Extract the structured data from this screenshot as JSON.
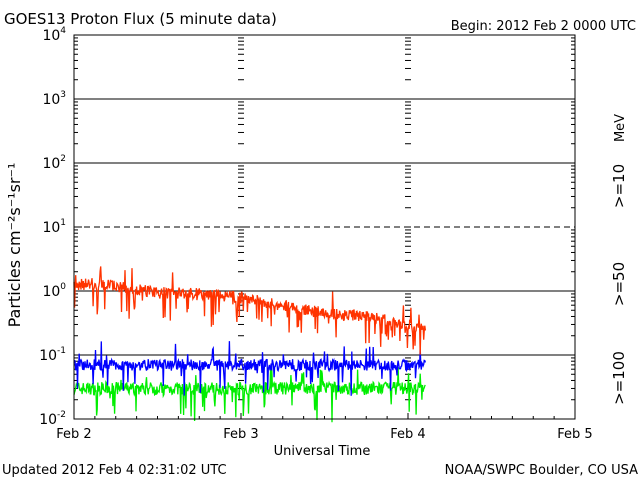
{
  "header": {
    "title": "GOES13 Proton Flux (5 minute data)",
    "begin": "Begin: 2012 Feb 2 0000 UTC"
  },
  "footer": {
    "updated": "Updated 2012 Feb  4 02:31:02 UTC",
    "source": "NOAA/SWPC Boulder, CO USA"
  },
  "chart_data": {
    "type": "line",
    "xlabel": "Universal Time",
    "ylabel": "Particles cm⁻²s⁻¹sr⁻¹",
    "y_scale": "log",
    "ylim": [
      0.01,
      10000
    ],
    "xlim_days": [
      "Feb 2",
      "Feb 5"
    ],
    "x_tick_labels": [
      "Feb 2",
      "Feb 3",
      "Feb 4",
      "Feb 5"
    ],
    "y_tick_labels": [
      {
        "base": "10",
        "exp": "4"
      },
      {
        "base": "10",
        "exp": "3"
      },
      {
        "base": "10",
        "exp": "2"
      },
      {
        "base": "10",
        "exp": "1"
      },
      {
        "base": "10",
        "exp": "0"
      },
      {
        "base": "10",
        "exp": "-1"
      },
      {
        "base": "10",
        "exp": "-2"
      }
    ],
    "reference_lines": [
      {
        "value": 10,
        "style": "dashed"
      },
      {
        "value": 1,
        "style": "solid"
      },
      {
        "value": 0.1,
        "style": "solid"
      }
    ],
    "unit_label": "MeV",
    "data_end": "2012-02-04 02:30",
    "series": [
      {
        "name": ">=10",
        "color": "#ff3300",
        "x": [
          "2012-02-02 00:00",
          "2012-02-02 06:00",
          "2012-02-02 12:00",
          "2012-02-02 18:00",
          "2012-02-03 00:00",
          "2012-02-03 06:00",
          "2012-02-03 12:00",
          "2012-02-03 18:00",
          "2012-02-04 00:00",
          "2012-02-04 02:30"
        ],
        "y": [
          1.3,
          1.2,
          0.95,
          0.9,
          0.8,
          0.6,
          0.45,
          0.4,
          0.3,
          0.25
        ]
      },
      {
        "name": ">=50",
        "color": "#0000ff",
        "x": [
          "2012-02-02 00:00",
          "2012-02-03 00:00",
          "2012-02-04 00:00",
          "2012-02-04 02:30"
        ],
        "y": [
          0.07,
          0.07,
          0.07,
          0.07
        ]
      },
      {
        "name": ">=100",
        "color": "#00ee00",
        "x": [
          "2012-02-02 00:00",
          "2012-02-03 00:00",
          "2012-02-04 00:00",
          "2012-02-04 02:30"
        ],
        "y": [
          0.03,
          0.03,
          0.03,
          0.03
        ]
      }
    ]
  }
}
